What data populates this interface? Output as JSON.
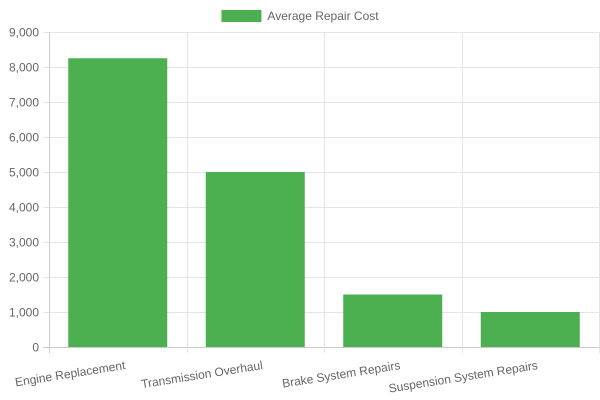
{
  "chart_data": {
    "type": "bar",
    "categories": [
      "Engine Replacement",
      "Transmission Overhaul",
      "Brake System Repairs",
      "Suspension System Repairs"
    ],
    "series": [
      {
        "name": "Average Repair Cost",
        "values": [
          8250,
          5000,
          1500,
          1000
        ],
        "color": "#4caf50"
      }
    ],
    "yticks": [
      "0",
      "1,000",
      "2,000",
      "3,000",
      "4,000",
      "5,000",
      "6,000",
      "7,000",
      "8,000",
      "9,000"
    ],
    "ylim": [
      0,
      9000
    ],
    "grid": true,
    "legend_position": "top-center"
  }
}
